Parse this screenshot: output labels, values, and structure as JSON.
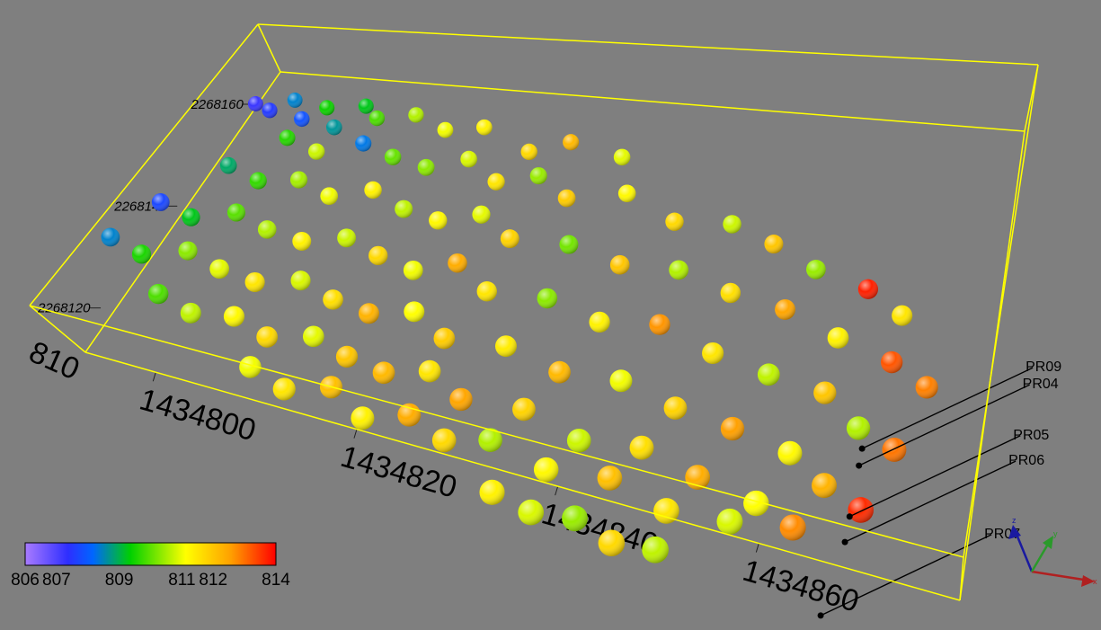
{
  "chart_data": {
    "type": "scatter",
    "title": "",
    "view": "3d-perspective",
    "x_ticks": [
      "1434800",
      "1434820",
      "1434840",
      "1434860"
    ],
    "y_ticks": [
      "2268120",
      "2268140",
      "2268160"
    ],
    "z_ticks": [
      "810"
    ],
    "xlim": [
      1434793,
      1434880
    ],
    "ylim": [
      2268112,
      2268166
    ],
    "zlim": [
      806,
      814
    ],
    "colorbar": {
      "ticks": [
        "806",
        "807",
        "809",
        "811",
        "812",
        "814"
      ],
      "range": [
        806,
        814
      ],
      "colors": [
        "#a97bff",
        "#2e2eff",
        "#0066ff",
        "#00d000",
        "#ffff00",
        "#ffa000",
        "#ff0000"
      ]
    },
    "box_color": "#ffff00",
    "wells": [
      {
        "name": "PR09",
        "x": 1434876,
        "y": 2268132
      },
      {
        "name": "PR04",
        "x": 1434876,
        "y": 2268130
      },
      {
        "name": "PR05",
        "x": 1434876,
        "y": 2268124
      },
      {
        "name": "PR06",
        "x": 1434876,
        "y": 2268121
      },
      {
        "name": "PR07",
        "x": 1434875,
        "y": 2268112
      }
    ],
    "points": [
      [
        1434794,
        2268160,
        806.9
      ],
      [
        1434796,
        2268159,
        807.2
      ],
      [
        1434798,
        2268161,
        808.2
      ],
      [
        1434800,
        2268158,
        807.6
      ],
      [
        1434802,
        2268160,
        809.1
      ],
      [
        1434804,
        2268157,
        808.4
      ],
      [
        1434806,
        2268161,
        808.9
      ],
      [
        1434808,
        2268159,
        809.6
      ],
      [
        1434812,
        2268160,
        810.4
      ],
      [
        1434816,
        2268158,
        810.9
      ],
      [
        1434820,
        2268159,
        811.2
      ],
      [
        1434826,
        2268156,
        811.6
      ],
      [
        1434830,
        2268158,
        812.1
      ],
      [
        1434836,
        2268157,
        810.8
      ],
      [
        1434800,
        2268154,
        809.3
      ],
      [
        1434804,
        2268152,
        810.6
      ],
      [
        1434808,
        2268155,
        808.1
      ],
      [
        1434812,
        2268153,
        809.8
      ],
      [
        1434816,
        2268152,
        810.1
      ],
      [
        1434820,
        2268154,
        810.7
      ],
      [
        1434824,
        2268151,
        811.4
      ],
      [
        1434828,
        2268153,
        810.2
      ],
      [
        1434832,
        2268150,
        811.8
      ],
      [
        1434838,
        2268152,
        811.1
      ],
      [
        1434844,
        2268149,
        811.6
      ],
      [
        1434850,
        2268150,
        810.6
      ],
      [
        1434855,
        2268148,
        811.9
      ],
      [
        1434860,
        2268146,
        810.2
      ],
      [
        1434866,
        2268144,
        813.7
      ],
      [
        1434870,
        2268142,
        811.4
      ],
      [
        1434796,
        2268148,
        808.6
      ],
      [
        1434800,
        2268146,
        809.4
      ],
      [
        1434804,
        2268147,
        810.3
      ],
      [
        1434808,
        2268145,
        810.9
      ],
      [
        1434812,
        2268147,
        811.2
      ],
      [
        1434816,
        2268145,
        810.5
      ],
      [
        1434820,
        2268144,
        811.1
      ],
      [
        1434824,
        2268146,
        810.8
      ],
      [
        1434828,
        2268143,
        811.7
      ],
      [
        1434834,
        2268144,
        809.9
      ],
      [
        1434840,
        2268142,
        811.9
      ],
      [
        1434846,
        2268143,
        810.4
      ],
      [
        1434852,
        2268141,
        811.5
      ],
      [
        1434858,
        2268140,
        812.4
      ],
      [
        1434864,
        2268138,
        811.2
      ],
      [
        1434870,
        2268136,
        813.2
      ],
      [
        1434874,
        2268134,
        812.8
      ],
      [
        1434792,
        2268140,
        807.4
      ],
      [
        1434796,
        2268138,
        808.9
      ],
      [
        1434800,
        2268140,
        809.7
      ],
      [
        1434804,
        2268138,
        810.4
      ],
      [
        1434808,
        2268137,
        811.2
      ],
      [
        1434812,
        2268139,
        810.6
      ],
      [
        1434816,
        2268137,
        811.6
      ],
      [
        1434820,
        2268136,
        810.9
      ],
      [
        1434824,
        2268138,
        812.3
      ],
      [
        1434828,
        2268135,
        811.4
      ],
      [
        1434834,
        2268136,
        810.1
      ],
      [
        1434840,
        2268134,
        811.2
      ],
      [
        1434846,
        2268135,
        812.6
      ],
      [
        1434852,
        2268133,
        811.4
      ],
      [
        1434858,
        2268132,
        810.5
      ],
      [
        1434864,
        2268131,
        811.9
      ],
      [
        1434868,
        2268128,
        810.4
      ],
      [
        1434872,
        2268126,
        812.9
      ],
      [
        1434790,
        2268132,
        808.2
      ],
      [
        1434794,
        2268130,
        809.2
      ],
      [
        1434798,
        2268132,
        810.1
      ],
      [
        1434802,
        2268130,
        810.8
      ],
      [
        1434806,
        2268129,
        811.4
      ],
      [
        1434810,
        2268131,
        810.7
      ],
      [
        1434814,
        2268129,
        811.5
      ],
      [
        1434818,
        2268128,
        812.2
      ],
      [
        1434822,
        2268130,
        811.0
      ],
      [
        1434826,
        2268127,
        811.8
      ],
      [
        1434832,
        2268128,
        811.3
      ],
      [
        1434838,
        2268126,
        812.1
      ],
      [
        1434844,
        2268127,
        810.9
      ],
      [
        1434850,
        2268125,
        811.7
      ],
      [
        1434856,
        2268124,
        812.5
      ],
      [
        1434862,
        2268123,
        811.1
      ],
      [
        1434866,
        2268120,
        812.2
      ],
      [
        1434870,
        2268118,
        813.6
      ],
      [
        1434798,
        2268124,
        809.6
      ],
      [
        1434802,
        2268122,
        810.5
      ],
      [
        1434806,
        2268123,
        811.1
      ],
      [
        1434810,
        2268121,
        811.6
      ],
      [
        1434814,
        2268123,
        810.8
      ],
      [
        1434818,
        2268121,
        811.9
      ],
      [
        1434822,
        2268120,
        812.1
      ],
      [
        1434826,
        2268122,
        811.4
      ],
      [
        1434830,
        2268119,
        812.4
      ],
      [
        1434836,
        2268120,
        811.7
      ],
      [
        1434842,
        2268118,
        810.6
      ],
      [
        1434848,
        2268119,
        811.5
      ],
      [
        1434854,
        2268117,
        812.3
      ],
      [
        1434860,
        2268116,
        811.0
      ],
      [
        1434864,
        2268114,
        812.7
      ],
      [
        1434810,
        2268116,
        810.9
      ],
      [
        1434814,
        2268114,
        811.4
      ],
      [
        1434818,
        2268116,
        812.0
      ],
      [
        1434822,
        2268113,
        811.2
      ],
      [
        1434826,
        2268115,
        812.3
      ],
      [
        1434830,
        2268113,
        811.6
      ],
      [
        1434834,
        2268115,
        810.4
      ],
      [
        1434840,
        2268113,
        811.1
      ],
      [
        1434846,
        2268114,
        812.0
      ],
      [
        1434852,
        2268112,
        811.4
      ],
      [
        1434858,
        2268113,
        810.7
      ],
      [
        1434836,
        2268108,
        811.2
      ],
      [
        1434840,
        2268107,
        810.7
      ],
      [
        1434844,
        2268108,
        810.2
      ],
      [
        1434848,
        2268106,
        811.6
      ],
      [
        1434852,
        2268107,
        810.5
      ]
    ]
  }
}
